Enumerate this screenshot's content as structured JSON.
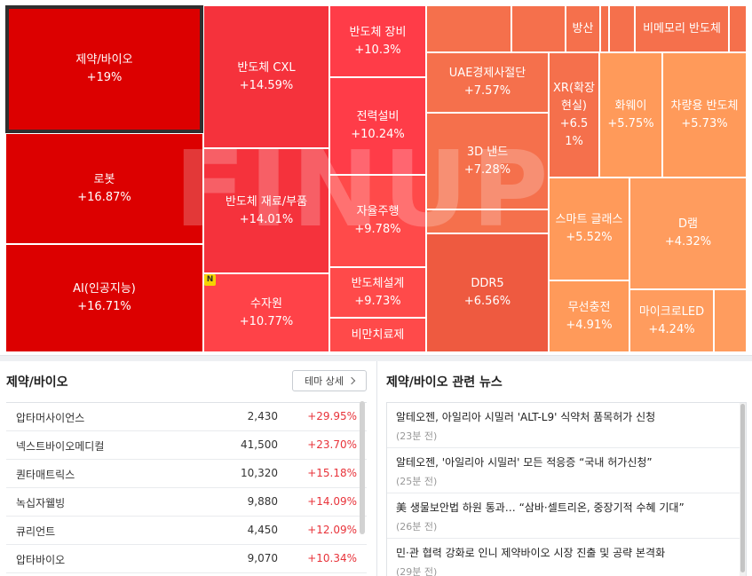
{
  "treemap": {
    "watermark": "FINUP",
    "badge": "N",
    "colors": {
      "dark_red": "#dc0000",
      "red": "#f5323c",
      "red2": "#ff4248",
      "orange_red": "#ee5a40",
      "orange": "#f5704c",
      "light_orange": "#ff9a5a",
      "pale_orange": "#ff9c5e"
    },
    "tiles": [
      {
        "name": "제약/바이오",
        "change": "+19%"
      },
      {
        "name": "로봇",
        "change": "+16.87%"
      },
      {
        "name": "AI(인공지능)",
        "change": "+16.71%"
      },
      {
        "name": "반도체 CXL",
        "change": "+14.59%"
      },
      {
        "name": "반도체 재료/부품",
        "change": "+14.01%"
      },
      {
        "name": "수자원",
        "change": "+10.77%"
      },
      {
        "name": "반도체 장비",
        "change": "+10.3%"
      },
      {
        "name": "전력설비",
        "change": "+10.24%"
      },
      {
        "name": "자율주행",
        "change": "+9.78%"
      },
      {
        "name": "반도체설계",
        "change": "+9.73%"
      },
      {
        "name": "비만치료제",
        "change": ""
      },
      {
        "name": "UAE경제사절단",
        "change": "+7.57%"
      },
      {
        "name": "3D 낸드",
        "change": "+7.28%"
      },
      {
        "name": "DDR5",
        "change": "+6.56%"
      },
      {
        "name": "XR(확장현실)",
        "change": "+6.51%"
      },
      {
        "name": "화웨이",
        "change": "+5.75%"
      },
      {
        "name": "차량용 반도체",
        "change": "+5.73%"
      },
      {
        "name": "방산",
        "change": ""
      },
      {
        "name": "비메모리 반도체",
        "change": ""
      },
      {
        "name": "스마트 글래스",
        "change": "+5.52%"
      },
      {
        "name": "D램",
        "change": "+4.32%"
      },
      {
        "name": "무선충전",
        "change": "+4.91%"
      },
      {
        "name": "마이크로LED",
        "change": "+4.24%"
      }
    ]
  },
  "theme_panel": {
    "title": "제약/바이오",
    "detail_button": "테마 상세",
    "stocks": [
      {
        "name": "압타머사이언스",
        "price": "2,430",
        "change": "+29.95%"
      },
      {
        "name": "넥스트바이오메디컬",
        "price": "41,500",
        "change": "+23.70%"
      },
      {
        "name": "퀀타매트릭스",
        "price": "10,320",
        "change": "+15.18%"
      },
      {
        "name": "녹십자웰빙",
        "price": "9,880",
        "change": "+14.09%"
      },
      {
        "name": "큐리언트",
        "price": "4,450",
        "change": "+12.09%"
      },
      {
        "name": "압타바이오",
        "price": "9,070",
        "change": "+10.34%"
      }
    ]
  },
  "news_panel": {
    "title": "제약/바이오 관련 뉴스",
    "items": [
      {
        "title": "알테오젠, 아일리아 시밀러 'ALT-L9' 식약처 품목허가 신청",
        "time": "(23분 전)"
      },
      {
        "title": "알테오젠, '아일리아 시밀러' 모든 적응증 “국내 허가신청”",
        "time": "(25분 전)"
      },
      {
        "title": "美 생물보안법 하원 통과… “삼바·셀트리온, 중장기적 수혜 기대”",
        "time": "(26분 전)"
      },
      {
        "title": "민·관 협력 강화로 인니 제약바이오 시장 진출 및 공략 본격화",
        "time": "(29분 전)"
      }
    ]
  }
}
